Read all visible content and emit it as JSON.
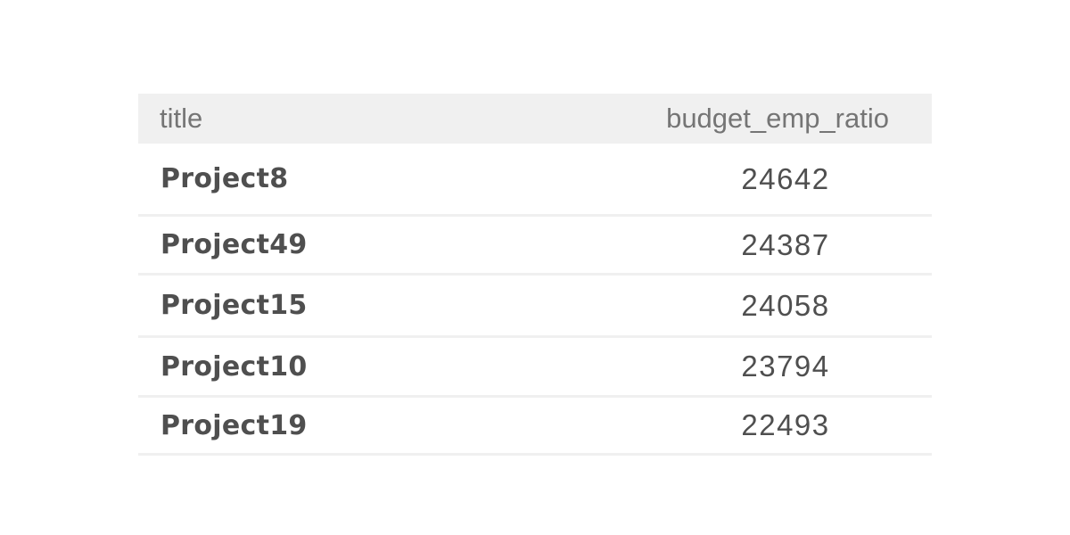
{
  "table": {
    "columns": [
      "title",
      "budget_emp_ratio"
    ],
    "rows": [
      {
        "title": "Project8",
        "budget_emp_ratio": "24642"
      },
      {
        "title": "Project49",
        "budget_emp_ratio": "24387"
      },
      {
        "title": "Project15",
        "budget_emp_ratio": "24058"
      },
      {
        "title": "Project10",
        "budget_emp_ratio": "23794"
      },
      {
        "title": "Project19",
        "budget_emp_ratio": "22493"
      }
    ]
  },
  "colors": {
    "header_bg": "#f0f0f0",
    "header_text": "#757575",
    "cell_text": "#4f4f4f",
    "divider": "#f0f0f0"
  }
}
